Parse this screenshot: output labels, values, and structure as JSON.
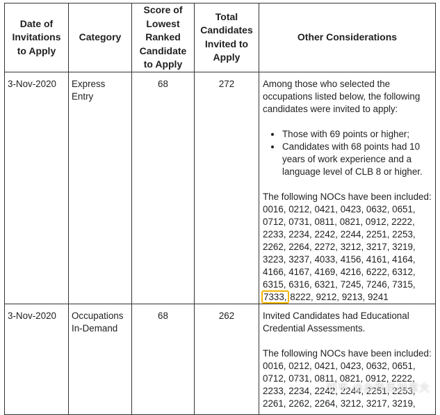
{
  "headers": {
    "date": "Date of Invitations to Apply",
    "category": "Category",
    "score": "Score of Lowest Ranked Candidate to Apply",
    "total": "Total Candidates Invited to Apply",
    "other": "Other Considerations"
  },
  "rows": [
    {
      "date": "3-Nov-2020",
      "category": "Express Entry",
      "score": "68",
      "total": "272",
      "intro": "Among those who selected the occupations listed below, the following candidates were invited to apply:",
      "bullets": [
        "Those with 69 points or higher;",
        "Candidates with 68 points had 10 years of work experience and a language level of CLB 8 or higher."
      ],
      "noc_intro": "The following NOCs have been included:",
      "nocs": "0016, 0212, 0421, 0423, 0632, 0651, 0712, 0731, 0811, 0821, 0912, 2222, 2233, 2234, 2242, 2244, 2251, 2253, 2262, 2264, 2272, 3212, 3217, 3219, 3223, 3237, 4033, 4156, 4161, 4164, 4166, 4167, 4169, 4216, 6222, 6312, 6315, 6316, 6321, 7245, 7246, 7315,",
      "noc_highlight": "7333,",
      "nocs_tail": "8222, 9212, 9213, 9241"
    },
    {
      "date": "3-Nov-2020",
      "category": "Occupations In-Demand",
      "score": "68",
      "total": "262",
      "intro": "Invited Candidates had Educational Credential Assessments.",
      "noc_intro": "The following NOCs have been included:",
      "nocs": "0016, 0212, 0421, 0423, 0632, 0651, 0712, 0731, 0811, 0821, 0912, 2222, 2233, 2234, 2242, 2244, 2251, 2253, 2261, 2262, 2264, 3212, 3217, 3219,"
    }
  ],
  "watermark": "知乎 @办移民加拿大"
}
